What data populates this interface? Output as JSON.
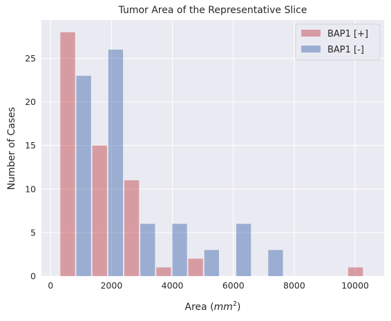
{
  "chart_data": {
    "type": "bar",
    "title": "Tumor Area of the Representative Slice",
    "xlabel_prefix": "Area (",
    "xlabel_math": "mm",
    "xlabel_sup": "2",
    "xlabel_suffix": ")",
    "ylabel": "Number of Cases",
    "xlim": [
      -300,
      10950
    ],
    "ylim": [
      0,
      29.4
    ],
    "xticks": [
      0,
      2000,
      4000,
      6000,
      8000,
      10000
    ],
    "xtick_labels": [
      "0",
      "2000",
      "4000",
      "6000",
      "8000",
      "10000"
    ],
    "yticks": [
      0,
      5,
      10,
      15,
      20,
      25
    ],
    "ytick_labels": [
      "0",
      "5",
      "10",
      "15",
      "20",
      "25"
    ],
    "grid": true,
    "legend_position": "top-right",
    "bin_edges": [
      300,
      1350,
      2400,
      3450,
      4500,
      5550,
      6600,
      7650,
      8700,
      9750,
      10800
    ],
    "series": [
      {
        "name": "BAP1 [+]",
        "color": "#c44e52",
        "values": [
          28,
          15,
          11,
          1,
          2,
          0,
          0,
          0,
          0,
          1
        ]
      },
      {
        "name": "BAP1 [-]",
        "color": "#4c72b0",
        "values": [
          23,
          26,
          6,
          6,
          3,
          6,
          3,
          0,
          0,
          0
        ]
      }
    ]
  }
}
